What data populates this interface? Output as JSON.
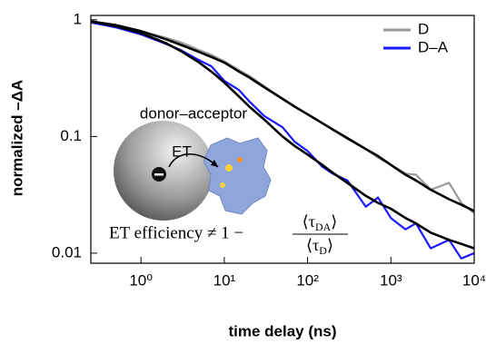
{
  "chart_data": {
    "type": "line",
    "x_label": "time delay (ns)",
    "y_label": "normalized –ΔA",
    "xscale": "log",
    "yscale": "log",
    "xlim": [
      0.25,
      10000
    ],
    "ylim": [
      0.0082,
      1.09
    ],
    "xticks": [
      {
        "value": 1,
        "label": "10⁰"
      },
      {
        "value": 10,
        "label": "10¹"
      },
      {
        "value": 100,
        "label": "10²"
      },
      {
        "value": 1000,
        "label": "10³"
      },
      {
        "value": 10000,
        "label": "10⁴"
      }
    ],
    "yticks": [
      1,
      0.1,
      0.01
    ],
    "legend": "top-right",
    "x": [
      0.25,
      0.5,
      1,
      2,
      3,
      5,
      7,
      10,
      15,
      20,
      30,
      50,
      70,
      100,
      150,
      200,
      300,
      500,
      700,
      1000,
      1500,
      2000,
      3000,
      5000,
      7000,
      10000
    ],
    "series": [
      {
        "name": "D",
        "color": "#999999",
        "values": [
          0.95,
          0.88,
          0.8,
          0.7,
          0.64,
          0.55,
          0.5,
          0.44,
          0.37,
          0.33,
          0.27,
          0.21,
          0.18,
          0.155,
          0.13,
          0.115,
          0.095,
          0.078,
          0.066,
          0.057,
          0.048,
          0.047,
          0.035,
          0.04,
          0.027,
          0.022
        ]
      },
      {
        "name": "D–A",
        "color": "#1a1aff",
        "values": [
          0.95,
          0.86,
          0.75,
          0.62,
          0.55,
          0.45,
          0.4,
          0.3,
          0.25,
          0.2,
          0.15,
          0.12,
          0.09,
          0.075,
          0.055,
          0.048,
          0.042,
          0.025,
          0.03,
          0.02,
          0.016,
          0.018,
          0.011,
          0.013,
          0.009,
          0.01
        ]
      },
      {
        "color": "#000000",
        "values": [
          0.97,
          0.9,
          0.8,
          0.68,
          0.61,
          0.53,
          0.48,
          0.43,
          0.36,
          0.32,
          0.265,
          0.21,
          0.18,
          0.155,
          0.13,
          0.115,
          0.097,
          0.078,
          0.068,
          0.057,
          0.047,
          0.042,
          0.035,
          0.029,
          0.026,
          0.023
        ]
      },
      {
        "color": "#000000",
        "values": [
          0.97,
          0.88,
          0.77,
          0.63,
          0.54,
          0.43,
          0.36,
          0.29,
          0.22,
          0.18,
          0.14,
          0.1,
          0.083,
          0.07,
          0.057,
          0.049,
          0.04,
          0.031,
          0.027,
          0.024,
          0.02,
          0.018,
          0.015,
          0.013,
          0.012,
          0.011
        ]
      }
    ],
    "annotations": {
      "complex": "donor–acceptor",
      "transfer": "ET",
      "equation": {
        "lhs": "ET efficiency ≠ 1 −",
        "numerator": [
          "⟨τ",
          "DA",
          "⟩"
        ],
        "denominator": [
          "⟨τ",
          "D",
          "⟩"
        ]
      }
    }
  }
}
